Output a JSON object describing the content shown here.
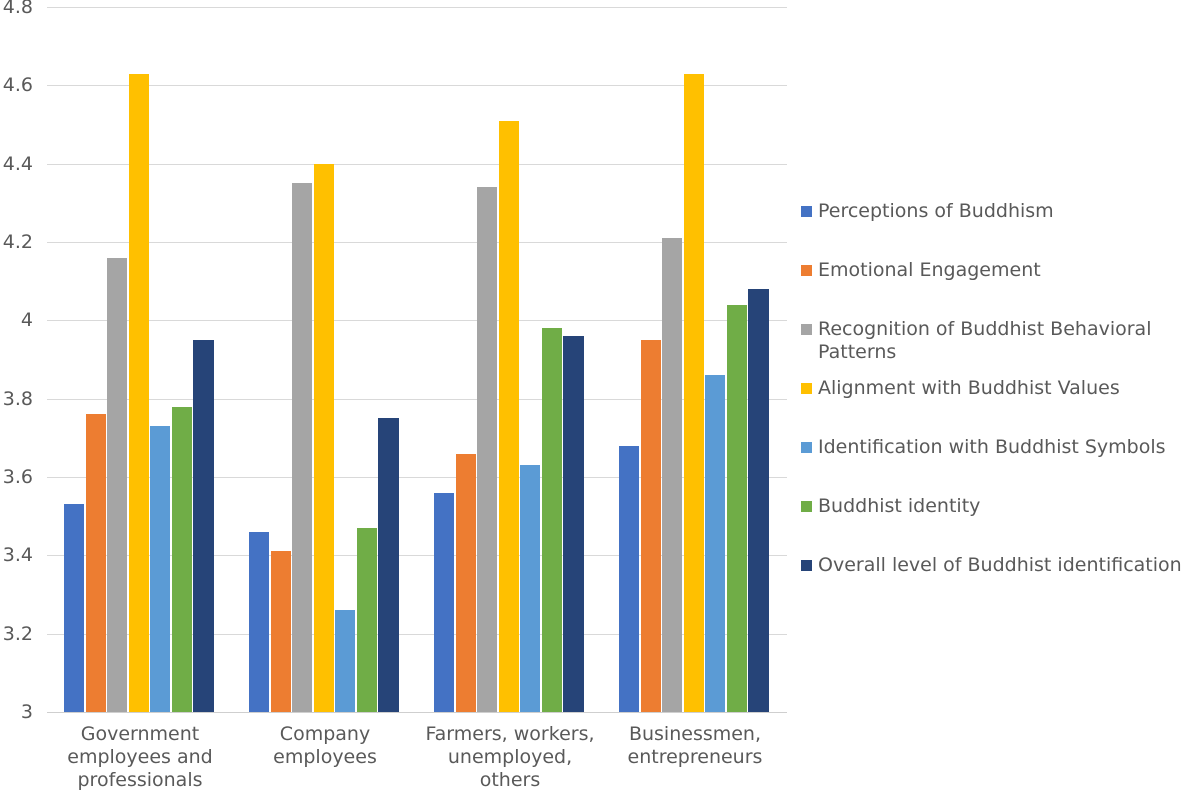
{
  "chart_data": {
    "type": "bar",
    "title": "",
    "categories": [
      "Government employees and professionals",
      "Company employees",
      "Farmers, workers, unemployed, others",
      "Businessmen, entrepreneurs"
    ],
    "categories_wrapped": [
      "Government\nemployees and\nprofessionals",
      "Company\nemployees",
      "Farmers, workers,\nunemployed,\nothers",
      "Businessmen,\nentrepreneurs"
    ],
    "series": [
      {
        "name": "Perceptions of Buddhism",
        "color": "#4472C4",
        "values": [
          3.53,
          3.46,
          3.56,
          3.68
        ]
      },
      {
        "name": "Emotional Engagement",
        "color": "#ED7D31",
        "values": [
          3.76,
          3.41,
          3.66,
          3.95
        ]
      },
      {
        "name": "Recognition of Buddhist Behavioral Patterns",
        "color": "#A5A5A5",
        "values": [
          4.16,
          4.35,
          4.34,
          4.21
        ]
      },
      {
        "name": "Alignment with Buddhist Values",
        "color": "#FFC000",
        "values": [
          4.63,
          4.4,
          4.51,
          4.63
        ]
      },
      {
        "name": "Identification with Buddhist Symbols",
        "color": "#5B9BD5",
        "values": [
          3.73,
          3.26,
          3.63,
          3.86
        ]
      },
      {
        "name": "Buddhist identity",
        "color": "#70AD47",
        "values": [
          3.78,
          3.47,
          3.98,
          4.04
        ]
      },
      {
        "name": "Overall level of Buddhist identification",
        "color": "#264478",
        "values": [
          3.95,
          3.75,
          3.96,
          4.08
        ]
      }
    ],
    "y_axis": {
      "min": 3.0,
      "max": 4.8,
      "tick_step": 0.2,
      "tick_labels": [
        "3",
        "3.2",
        "3.4",
        "3.6",
        "3.8",
        "4",
        "4.2",
        "4.4",
        "4.6",
        "4.8"
      ]
    },
    "grid": true,
    "legend_position": "right",
    "styles": {
      "text_color": "#595959",
      "gridline_color": "#D9D9D9",
      "axisline_color": "#CFCFCF",
      "background": "#FFFFFF"
    }
  }
}
